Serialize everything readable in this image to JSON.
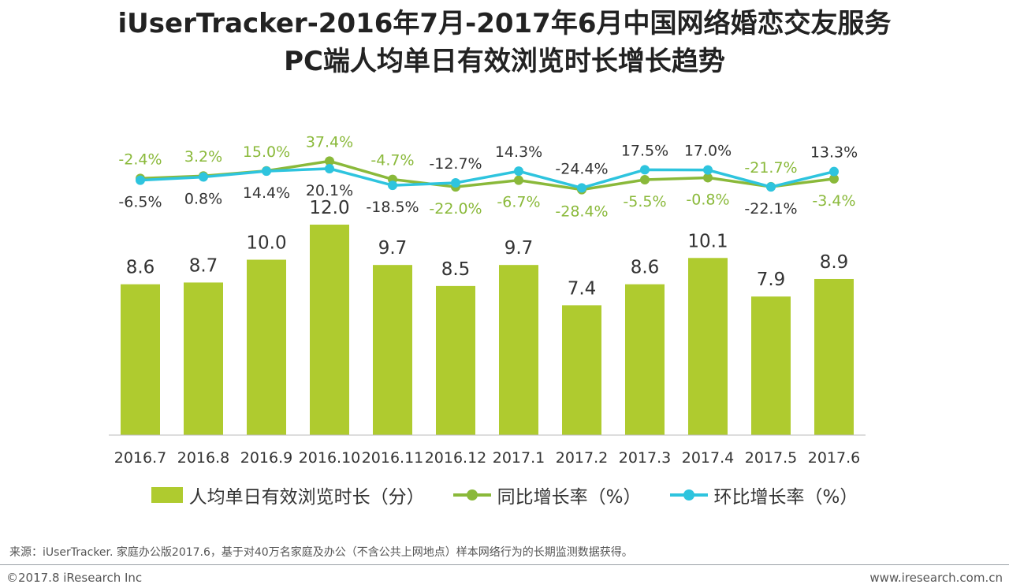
{
  "title_line1": "iUserTracker-2016年7月-2017年6月中国网络婚恋交友服务",
  "title_line2": "PC端人均单日有效浏览时长增长趋势",
  "chart_data": {
    "type": "bar",
    "categories": [
      "2016.7",
      "2016.8",
      "2016.9",
      "2016.10",
      "2016.11",
      "2016.12",
      "2017.1",
      "2017.2",
      "2017.3",
      "2017.4",
      "2017.5",
      "2017.6"
    ],
    "series": [
      {
        "name": "人均单日有效浏览时长（分）",
        "type": "bar",
        "color": "#afcb2f",
        "values": [
          8.6,
          8.7,
          10.0,
          12.0,
          9.7,
          8.5,
          9.7,
          7.4,
          8.6,
          10.1,
          7.9,
          8.9
        ],
        "labels": [
          "8.6",
          "8.7",
          "10.0",
          "12.0",
          "9.7",
          "8.5",
          "9.7",
          "7.4",
          "8.6",
          "10.1",
          "7.9",
          "8.9"
        ]
      },
      {
        "name": "同比增长率（%）",
        "type": "line",
        "color": "#8ab93a",
        "values": [
          -2.4,
          3.2,
          15.0,
          37.4,
          -4.7,
          -22.0,
          -6.7,
          -28.4,
          -5.5,
          -0.8,
          -21.7,
          -3.4
        ],
        "labels": [
          "-2.4%",
          "3.2%",
          "15.0%",
          "37.4%",
          "-4.7%",
          "-22.0%",
          "-6.7%",
          "-28.4%",
          "-5.5%",
          "-0.8%",
          "-21.7%",
          "-3.4%"
        ]
      },
      {
        "name": "环比增长率（%）",
        "type": "line",
        "color": "#2ec4de",
        "values": [
          -6.5,
          0.8,
          14.4,
          20.1,
          -18.5,
          -12.7,
          14.3,
          -24.4,
          17.5,
          17.0,
          -22.1,
          13.3
        ],
        "labels": [
          "-6.5%",
          "0.8%",
          "14.4%",
          "20.1%",
          "-18.5%",
          "-12.7%",
          "14.3%",
          "-24.4%",
          "17.5%",
          "17.0%",
          "-22.1%",
          "13.3%"
        ]
      }
    ],
    "bar_ylim": [
      0,
      13.5
    ],
    "line_ylim": [
      -300,
      300
    ],
    "xlabel": "",
    "ylabel": "",
    "legend_position": "bottom"
  },
  "footer": {
    "source": "来源：iUserTracker. 家庭办公版2017.6，基于对40万名家庭及办公（不含公共上网地点）样本网络行为的长期监测数据获得。",
    "copyright": "©2017.8 iResearch Inc",
    "website": "www.iresearch.com.cn"
  }
}
